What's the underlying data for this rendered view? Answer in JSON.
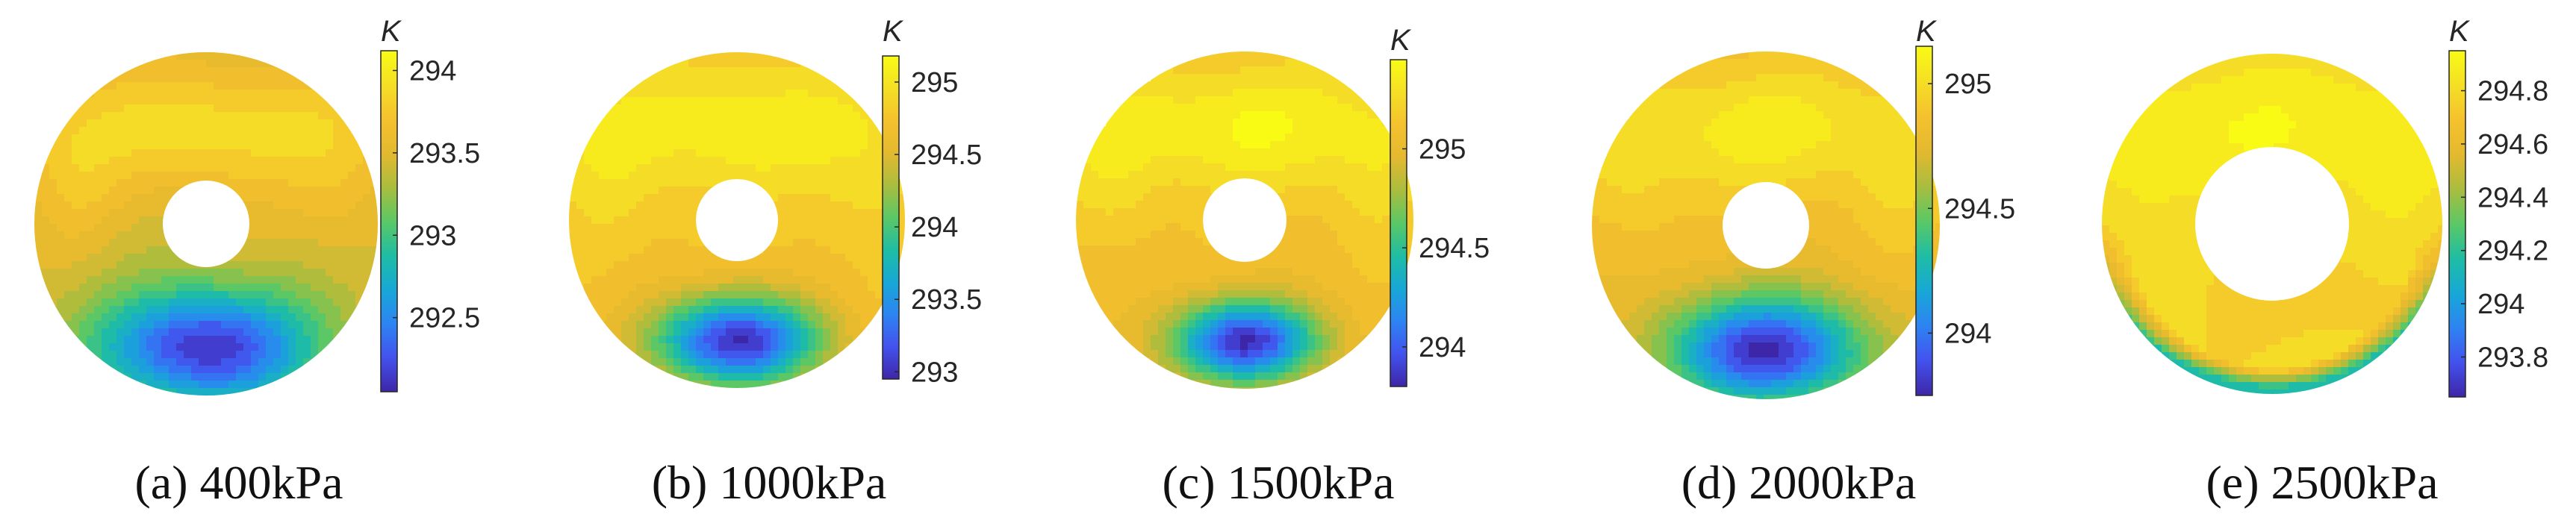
{
  "colormap": [
    "#3e26a8",
    "#4352ee",
    "#2d84f2",
    "#17a8d6",
    "#1fbda3",
    "#5bc865",
    "#aabd3e",
    "#e4b92f",
    "#f5c12e",
    "#f5df25",
    "#f9fb15"
  ],
  "panels": [
    {
      "caption": "(a) 400kPa",
      "unit": "K",
      "range": [
        292.05,
        294.12
      ],
      "ticks": [
        {
          "value": 294,
          "label": "294"
        },
        {
          "value": 293.5,
          "label": "293.5"
        },
        {
          "value": 293,
          "label": "293"
        },
        {
          "value": 292.5,
          "label": "292.5"
        }
      ],
      "field": {
        "base": 293.45,
        "upper_high": 293.92,
        "side_spots": 293.6,
        "cold_min": 292.1,
        "cold_width": 0.78
      },
      "center_hole": true
    },
    {
      "caption": "(b) 1000kPa",
      "unit": "K",
      "range": [
        292.95,
        295.18
      ],
      "ticks": [
        {
          "value": 295,
          "label": "295"
        },
        {
          "value": 294.5,
          "label": "294.5"
        },
        {
          "value": 294,
          "label": "294"
        },
        {
          "value": 293.5,
          "label": "293.5"
        },
        {
          "value": 293,
          "label": "293"
        }
      ],
      "field": {
        "base": 294.75,
        "upper_high": 295.1,
        "side_spots": 294.85,
        "cold_min": 293.0,
        "cold_width": 0.62
      },
      "center_hole": true
    },
    {
      "caption": "(c) 1500kPa",
      "unit": "K",
      "range": [
        293.8,
        295.45
      ],
      "ticks": [
        {
          "value": 295,
          "label": "295"
        },
        {
          "value": 294.5,
          "label": "294.5"
        },
        {
          "value": 294,
          "label": "294"
        }
      ],
      "field": {
        "base": 295.1,
        "upper_high": 295.42,
        "side_spots": 295.2,
        "cold_min": 293.85,
        "cold_width": 0.55
      },
      "center_hole": true
    },
    {
      "caption": "(d) 2000kPa",
      "unit": "K",
      "range": [
        293.75,
        295.15
      ],
      "ticks": [
        {
          "value": 295,
          "label": "295"
        },
        {
          "value": 294.5,
          "label": "294.5"
        },
        {
          "value": 294,
          "label": "294"
        }
      ],
      "field": {
        "base": 294.82,
        "upper_high": 295.08,
        "side_spots": 294.9,
        "cold_min": 293.78,
        "cold_width": 0.72
      },
      "center_hole": true
    },
    {
      "caption": "(e) 2500kPa",
      "unit": "K",
      "range": [
        293.65,
        294.95
      ],
      "ticks": [
        {
          "value": 294.8,
          "label": "294.8"
        },
        {
          "value": 294.6,
          "label": "294.6"
        },
        {
          "value": 294.4,
          "label": "294.4"
        },
        {
          "value": 294.2,
          "label": "294.2"
        },
        {
          "value": 294,
          "label": "294"
        },
        {
          "value": 293.8,
          "label": "293.8"
        }
      ],
      "field": {
        "base": 294.78,
        "upper_high": 294.92,
        "side_spots": 294.82,
        "cold_min": 294.15,
        "cold_width": 0.0
      },
      "center_hole": true
    }
  ]
}
